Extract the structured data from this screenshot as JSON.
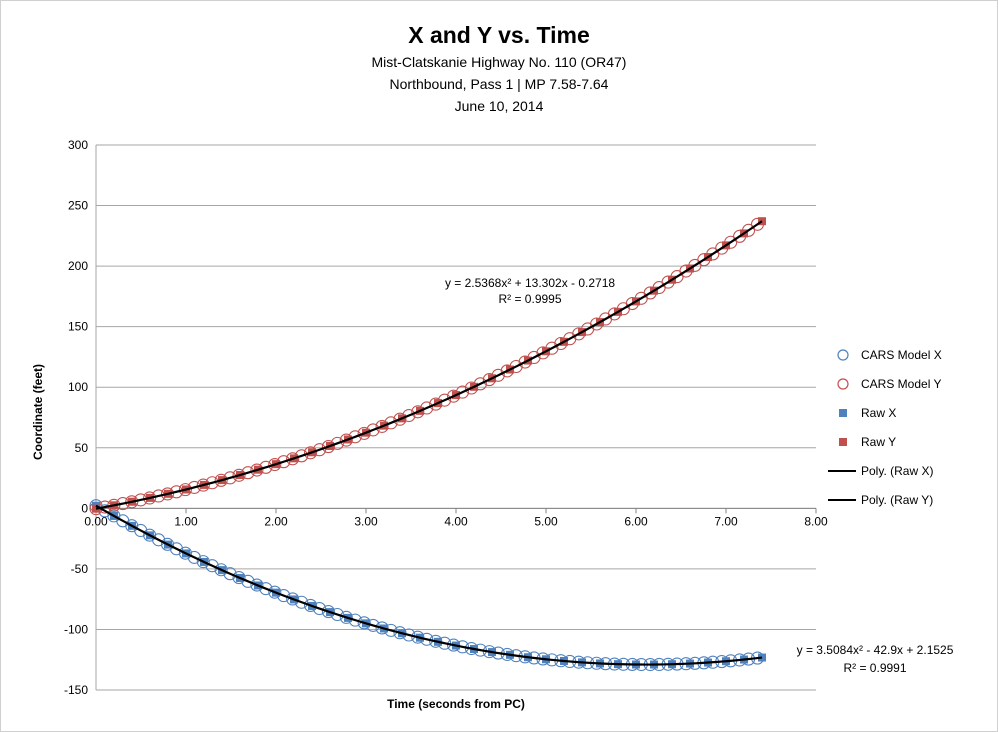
{
  "chart_data": {
    "type": "scatter",
    "title": "X and Y vs. Time",
    "subtitles": [
      "Mist-Clatskanie Highway No. 110 (OR47)",
      "Northbound, Pass 1  |  MP 7.58-7.64",
      "June 10, 2014"
    ],
    "xlabel": "Time (seconds from PC)",
    "ylabel": "Coordinate (feet)",
    "xlim": [
      0,
      8
    ],
    "ylim": [
      -150,
      300
    ],
    "x_ticks": [
      "0.00",
      "1.00",
      "2.00",
      "3.00",
      "4.00",
      "5.00",
      "6.00",
      "7.00",
      "8.00"
    ],
    "y_ticks": [
      "300",
      "250",
      "200",
      "150",
      "100",
      "50",
      "0",
      "-50",
      "-100",
      "-150"
    ],
    "grid": "horizontal",
    "legend_position": "right",
    "legend": [
      "CARS Model X",
      "CARS Model Y",
      "Raw X",
      "Raw Y",
      "Poly. (Raw X)",
      "Poly. (Raw Y)"
    ],
    "series_colors": {
      "x": "#4f81bd",
      "y": "#c0504d",
      "trend": "#000000"
    },
    "series": [
      {
        "name": "CARS Model X",
        "marker": "open-circle",
        "color": "#4f81bd",
        "t_start": 0,
        "t_end": 7.35,
        "count": 75,
        "poly": [
          3.5084,
          -42.9,
          2.1525
        ]
      },
      {
        "name": "CARS Model Y",
        "marker": "open-circle",
        "color": "#c0504d",
        "t_start": 0,
        "t_end": 7.35,
        "count": 75,
        "poly": [
          2.5368,
          13.302,
          -0.2718
        ]
      },
      {
        "name": "Raw X",
        "marker": "filled-square",
        "color": "#4f81bd",
        "t_start": 0,
        "t_end": 7.4,
        "count": 38,
        "poly": [
          3.5084,
          -42.9,
          2.1525
        ]
      },
      {
        "name": "Raw Y",
        "marker": "filled-square",
        "color": "#c0504d",
        "t_start": 0,
        "t_end": 7.4,
        "count": 38,
        "poly": [
          2.5368,
          13.302,
          -0.2718
        ]
      }
    ],
    "trendlines": [
      {
        "name": "Poly. (Raw X)",
        "equation": "y = 3.5084x² - 42.9x + 2.1525",
        "r2": "R² = 0.9991",
        "poly": [
          3.5084,
          -42.9,
          2.1525
        ],
        "t_end": 7.4
      },
      {
        "name": "Poly. (Raw Y)",
        "equation": "y = 2.5368x² + 13.302x - 0.2718",
        "r2": "R² = 0.9995",
        "poly": [
          2.5368,
          13.302,
          -0.2718
        ],
        "t_end": 7.4
      }
    ]
  }
}
